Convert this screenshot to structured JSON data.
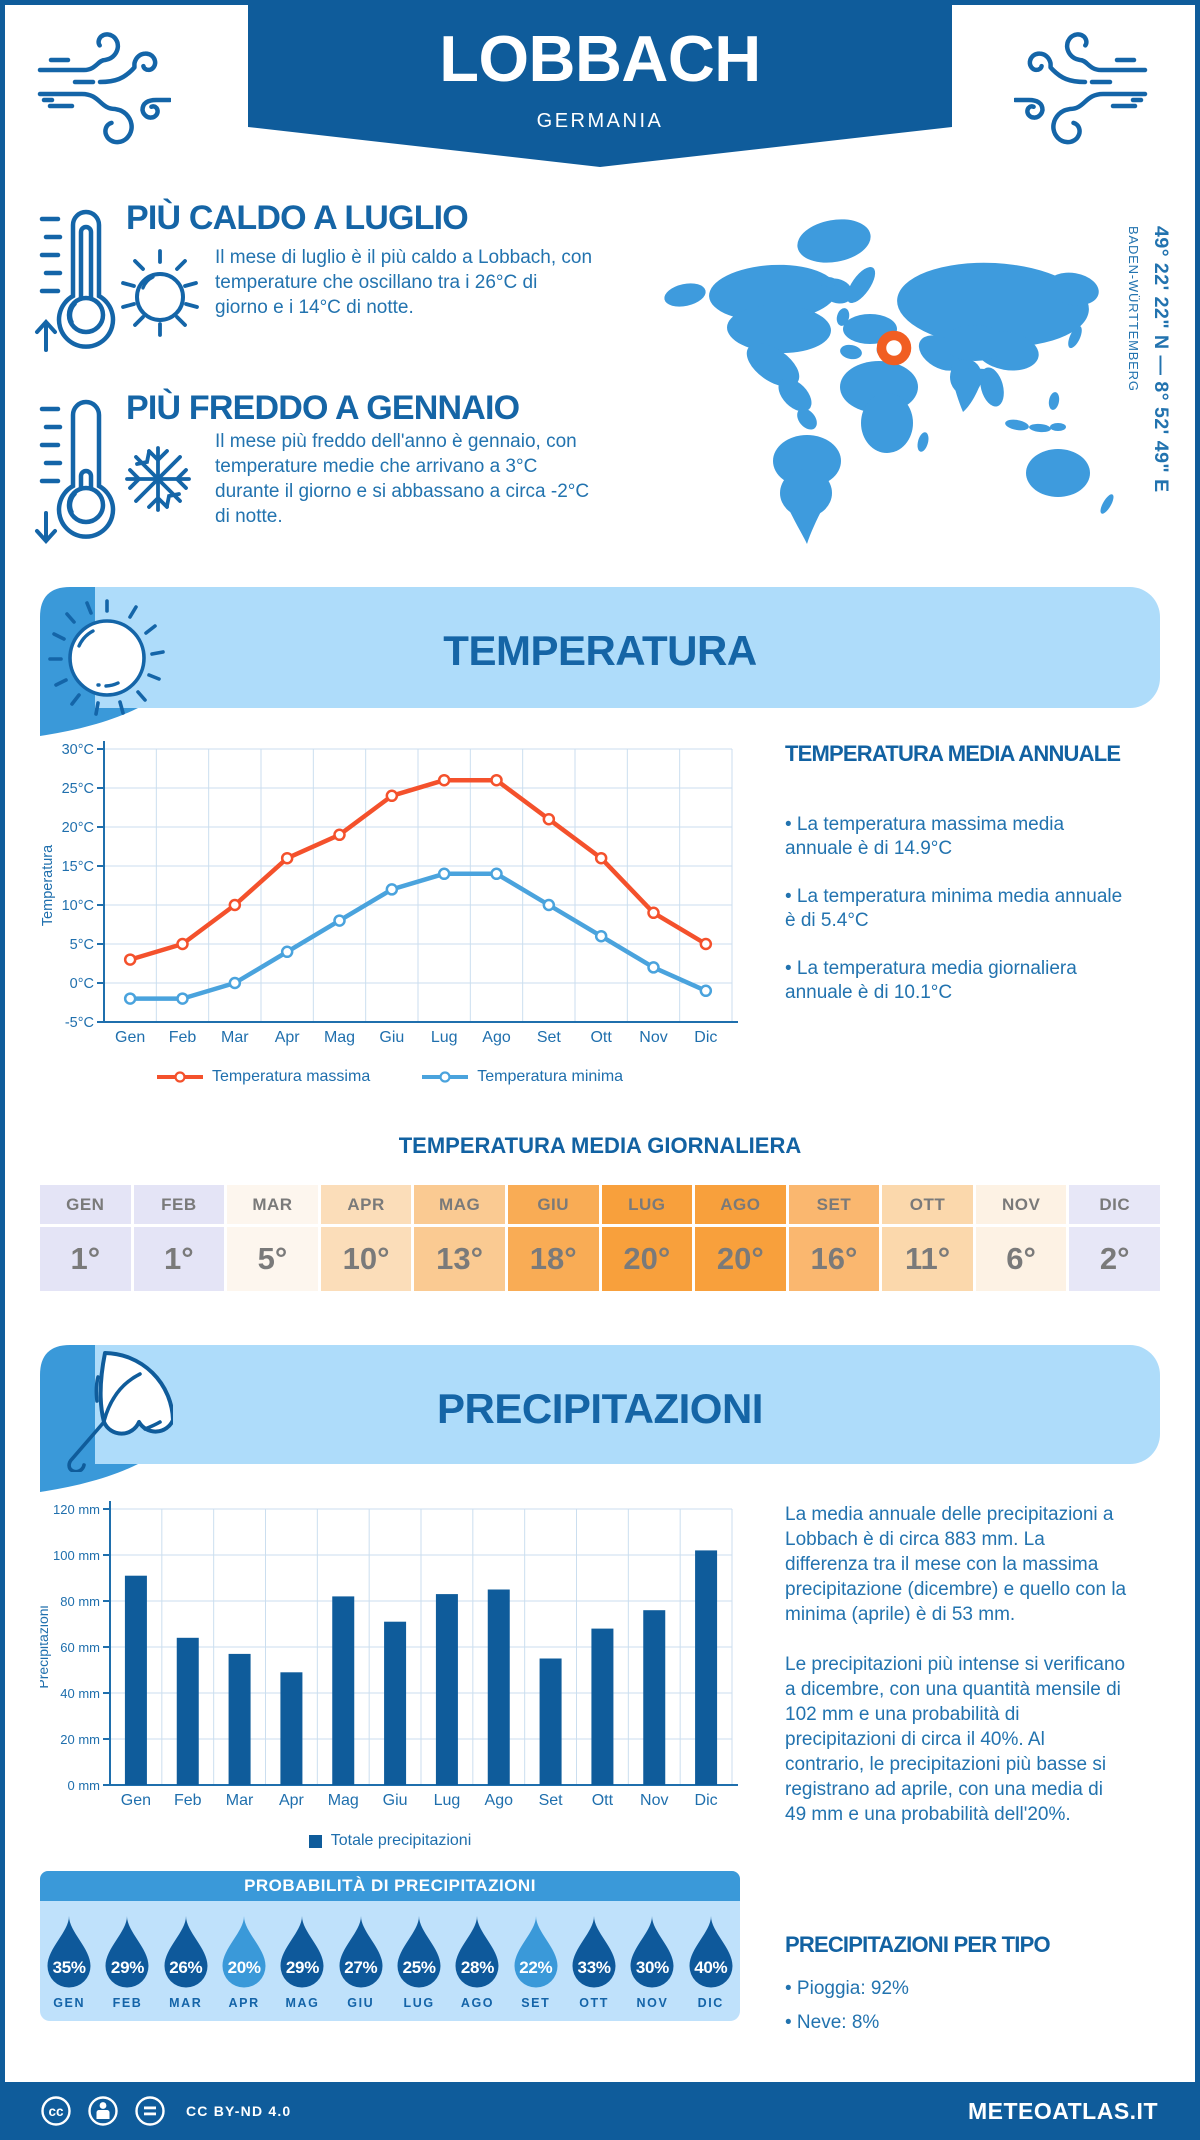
{
  "header": {
    "city": "LOBBACH",
    "country": "GERMANIA"
  },
  "map": {
    "coordinates": "49° 22' 22\" N — 8° 52' 49\" E",
    "region": "BADEN-WÜRTTEMBERG",
    "marker_color": "#F15E22",
    "land_color": "#3E9BDD"
  },
  "highlights": [
    {
      "title": "PIÙ CALDO A LUGLIO",
      "text": "Il mese di luglio è il più caldo a Lobbach, con\ntemperature che oscillano tra i 26°C di\ngiorno e i 14°C di notte."
    },
    {
      "title": "PIÙ FREDDO A GENNAIO",
      "text": "Il mese più freddo dell'anno è gennaio, con\ntemperature medie che arrivano a 3°C\ndurante il giorno e si abbassano a circa -2°C\ndi notte."
    }
  ],
  "temperature_section": {
    "banner_title": "TEMPERATURA",
    "annual_heading": "TEMPERATURA MEDIA ANNUALE",
    "annual_bullets": [
      "• La temperatura massima media\nannuale è di 14.9°C",
      "• La temperatura minima media annuale\nè di 5.4°C",
      "• La temperatura media giornaliera\nannuale è di 10.1°C"
    ],
    "daily_heading": "TEMPERATURA MEDIA GIORNALIERA"
  },
  "daily_table": {
    "months": [
      "GEN",
      "FEB",
      "MAR",
      "APR",
      "MAG",
      "GIU",
      "LUG",
      "AGO",
      "SET",
      "OTT",
      "NOV",
      "DIC"
    ],
    "values": [
      "1°",
      "1°",
      "5°",
      "10°",
      "13°",
      "18°",
      "20°",
      "20°",
      "16°",
      "11°",
      "6°",
      "2°"
    ],
    "colors": [
      "#E4E4F6",
      "#E4E4F6",
      "#FDF6EE",
      "#FBDDB9",
      "#FACA92",
      "#F9AC55",
      "#F8A03C",
      "#F8A03C",
      "#FAB76F",
      "#FBD8AC",
      "#FDF2E4",
      "#E7E7F7"
    ]
  },
  "precipitation_section": {
    "banner_title": "PRECIPITAZIONI",
    "text_paragraphs": [
      "La media annuale delle precipitazioni a\nLobbach è di circa 883 mm. La\ndifferenza tra il mese con la massima\nprecipitazione (dicembre) e quello con la\nminima (aprile) è di 53 mm.",
      "Le precipitazioni più intense si verificano\na dicembre, con una quantità mensile di\n102 mm e una probabilità di\nprecipitazioni di circa il 40%. Al\ncontrario, le precipitazioni più basse si\nregistrano ad aprile, con una media di\n49 mm e una probabilità dell'20%."
    ],
    "probability_banner": "PROBABILITÀ DI PRECIPITAZIONI",
    "per_type_heading": "PRECIPITAZIONI PER TIPO",
    "per_type_bullets": [
      "• Pioggia: 92%",
      "• Neve: 8%"
    ]
  },
  "precip_probability": {
    "months": [
      "GEN",
      "FEB",
      "MAR",
      "APR",
      "MAG",
      "GIU",
      "LUG",
      "AGO",
      "SET",
      "OTT",
      "NOV",
      "DIC"
    ],
    "values": [
      "35%",
      "29%",
      "26%",
      "20%",
      "29%",
      "27%",
      "25%",
      "28%",
      "22%",
      "33%",
      "30%",
      "40%"
    ],
    "drop_color": "#0E599B",
    "drop_color_light": "#3A99D9",
    "light_indices": [
      3,
      8
    ]
  },
  "chart_data": [
    {
      "type": "line",
      "title": "",
      "xlabel": "",
      "ylabel": "Temperatura",
      "categories": [
        "Gen",
        "Feb",
        "Mar",
        "Apr",
        "Mag",
        "Giu",
        "Lug",
        "Ago",
        "Set",
        "Ott",
        "Nov",
        "Dic"
      ],
      "ylim": [
        -5,
        30
      ],
      "ytick_step": 5,
      "ytick_suffix": "°C",
      "series": [
        {
          "name": "Temperatura massima",
          "color": "#F4512C",
          "values": [
            3,
            5,
            10,
            16,
            19,
            24,
            26,
            26,
            21,
            16,
            9,
            5
          ]
        },
        {
          "name": "Temperatura minima",
          "color": "#4AA3DD",
          "values": [
            -2,
            -2,
            0,
            4,
            8,
            12,
            14,
            14,
            10,
            6,
            2,
            -1
          ]
        }
      ],
      "legend_position": "bottom",
      "grid": true
    },
    {
      "type": "bar",
      "title": "",
      "xlabel": "",
      "ylabel": "Precipitazioni",
      "categories": [
        "Gen",
        "Feb",
        "Mar",
        "Apr",
        "Mag",
        "Giu",
        "Lug",
        "Ago",
        "Set",
        "Ott",
        "Nov",
        "Dic"
      ],
      "ylim": [
        0,
        120
      ],
      "ytick_step": 20,
      "ytick_suffix": " mm",
      "series": [
        {
          "name": "Totale precipitazioni",
          "color": "#0F5C9B",
          "values": [
            91,
            64,
            57,
            49,
            82,
            71,
            83,
            85,
            55,
            68,
            76,
            102
          ]
        }
      ],
      "legend_position": "bottom",
      "grid": true
    }
  ],
  "footer": {
    "license": "CC BY-ND 4.0",
    "brand": "METEOATLAS.IT"
  }
}
